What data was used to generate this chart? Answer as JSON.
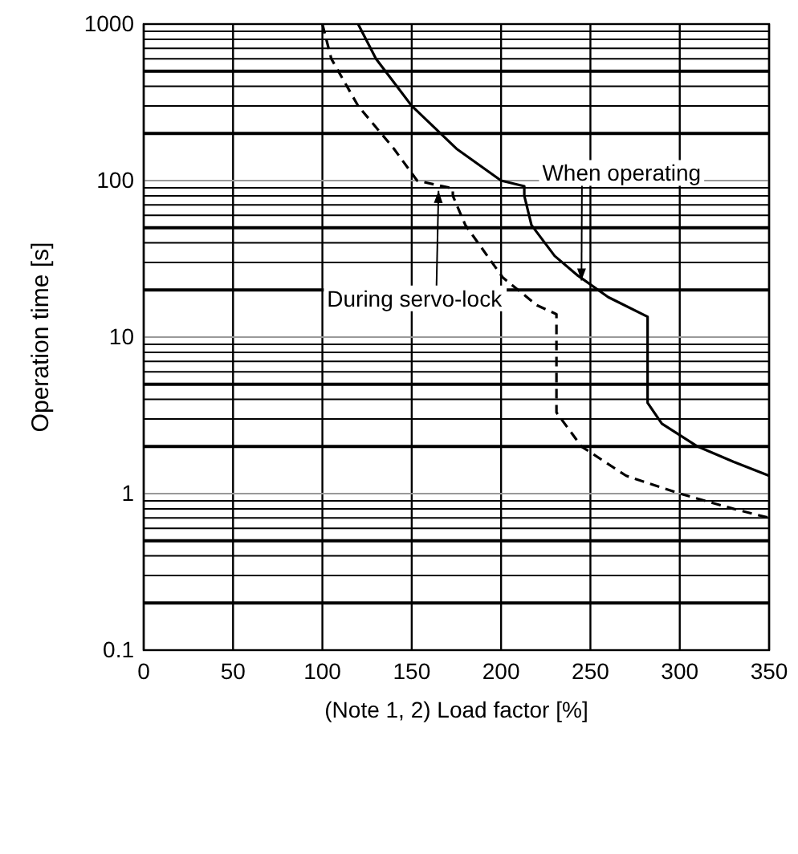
{
  "chart_data": {
    "type": "line",
    "xlabel": "(Note 1, 2) Load factor [%]",
    "ylabel": "Operation time [s]",
    "xlim": [
      0,
      350
    ],
    "xticks": [
      0,
      50,
      100,
      150,
      200,
      250,
      300,
      350
    ],
    "ylim": [
      0.1,
      1000
    ],
    "yticks": [
      0.1,
      1,
      10,
      100,
      1000
    ],
    "log": "y",
    "grid": true,
    "series": [
      {
        "color": "#000000",
        "line_style": "solid",
        "x": [
          120,
          130,
          150,
          175,
          200,
          213,
          213,
          217,
          230,
          243,
          260,
          282,
          282,
          290,
          310,
          330,
          350
        ],
        "values": [
          1000,
          600,
          300,
          160,
          100,
          92,
          80,
          52,
          33,
          24.7,
          18,
          13.5,
          3.8,
          2.8,
          2,
          1.6,
          1.3
        ]
      },
      {
        "color": "#000000",
        "line_style": "dashed",
        "x": [
          100,
          105,
          120,
          140,
          153,
          173,
          173,
          180,
          201,
          220,
          231,
          231,
          245,
          270,
          300,
          330,
          350
        ],
        "values": [
          1000,
          600,
          300,
          160,
          100,
          89,
          80,
          52,
          24,
          16,
          14,
          3.3,
          2,
          1.3,
          1,
          0.8,
          0.7
        ]
      }
    ],
    "annotations": [
      {
        "text": "When operating",
        "x": 245,
        "y": 23
      },
      {
        "text": "During servo-lock",
        "x": 165,
        "y": 86
      }
    ]
  }
}
